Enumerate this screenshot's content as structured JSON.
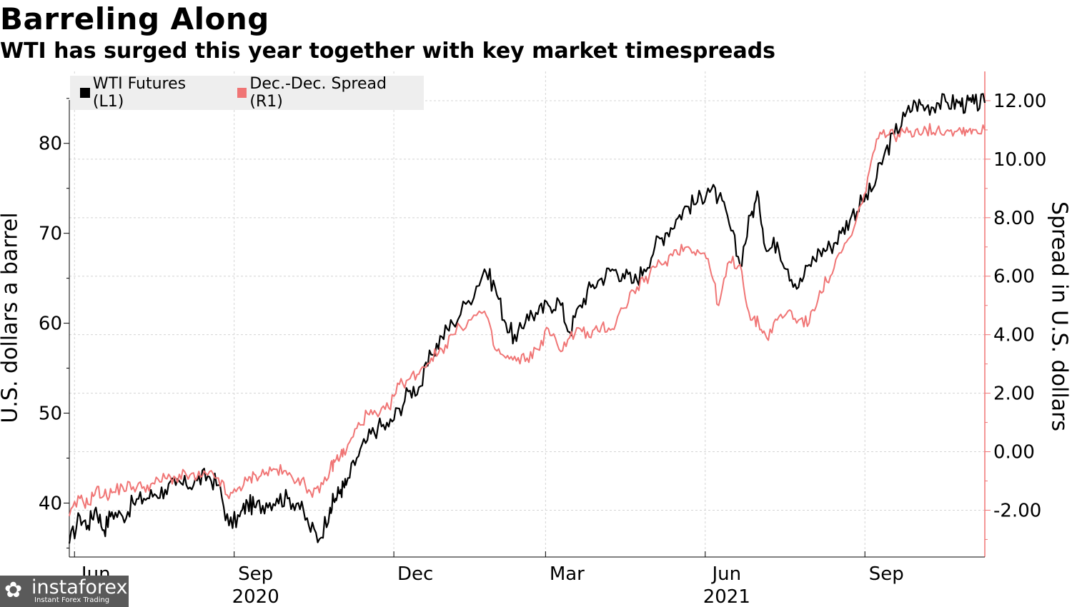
{
  "header": {
    "title": "Barreling Along",
    "subtitle": "WTI has surged this year together with key market timespreads"
  },
  "legend": {
    "items": [
      {
        "label": "WTI Futures (L1)",
        "color": "#000000"
      },
      {
        "label": "Dec.-Dec. Spread (R1)",
        "color": "#f07575"
      }
    ]
  },
  "axes": {
    "left_label": "U.S. dollars a barrel",
    "right_label": "Spread in U.S. dollars"
  },
  "chart_data": {
    "type": "line",
    "title": "Barreling Along",
    "subtitle": "WTI has surged this year together with key market timespreads",
    "x_range": [
      0,
      17.2
    ],
    "x_ticks": [
      {
        "label": "Jun",
        "x": 0.5
      },
      {
        "label": "Sep",
        "x": 3.5
      },
      {
        "label": "Dec",
        "x": 6.5
      },
      {
        "label": "Mar",
        "x": 9.35
      },
      {
        "label": "Jun",
        "x": 12.35
      },
      {
        "label": "Sep",
        "x": 15.35
      }
    ],
    "year_labels": [
      {
        "label": "2020",
        "x": 3.5
      },
      {
        "label": "2021",
        "x": 12.35
      }
    ],
    "y_left": {
      "label": "U.S. dollars a barrel",
      "range": [
        34,
        88
      ],
      "ticks": [
        40,
        50,
        60,
        70,
        80
      ]
    },
    "y_right": {
      "label": "Spread in U.S. dollars",
      "range": [
        -3.6,
        13.0
      ],
      "ticks": [
        "-2.00",
        "0.00",
        "2.00",
        "4.00",
        "6.00",
        "8.00",
        "10.00",
        "12.00"
      ]
    },
    "series": [
      {
        "name": "WTI Futures (L1)",
        "axis": "left",
        "color": "#000000",
        "x": [
          0,
          0.2,
          0.35,
          0.5,
          0.65,
          0.8,
          1.0,
          1.2,
          1.4,
          1.6,
          1.8,
          2.0,
          2.2,
          2.4,
          2.6,
          2.8,
          3.0,
          3.2,
          3.35,
          3.5,
          3.7,
          3.9,
          4.1,
          4.3,
          4.5,
          4.7,
          4.9,
          5.0,
          5.1,
          5.2,
          5.4,
          5.6,
          5.8,
          6.0,
          6.2,
          6.4,
          6.6,
          6.8,
          7.0,
          7.2,
          7.5,
          7.8,
          8.0,
          8.2,
          8.4,
          8.6,
          8.8,
          9.0,
          9.2,
          9.4,
          9.6,
          9.8,
          10.0,
          10.2,
          10.4,
          10.6,
          10.8,
          11.0,
          11.2,
          11.4,
          11.6,
          11.8,
          12.0,
          12.2,
          12.4,
          12.6,
          12.8,
          12.95,
          13.1,
          13.3,
          13.5,
          13.7,
          13.9,
          14.1,
          14.3,
          14.5,
          14.7,
          14.9,
          15.1,
          15.3,
          15.5,
          15.7,
          15.9,
          16.1,
          16.3,
          16.5,
          16.7,
          16.85,
          17.0,
          17.2
        ],
        "values": [
          35.5,
          38.5,
          37.5,
          39.5,
          37.0,
          39.0,
          38.5,
          40.0,
          40.5,
          41.0,
          41.5,
          42.0,
          42.0,
          42.5,
          43.0,
          42.0,
          37.5,
          38.5,
          40.0,
          39.5,
          40.0,
          40.5,
          40.5,
          40.0,
          37.5,
          36.0,
          39.5,
          40.5,
          41.5,
          42.0,
          45.0,
          47.0,
          48.5,
          48.5,
          50.5,
          52.5,
          53.0,
          56.5,
          58.5,
          60.0,
          62.5,
          66.0,
          64.0,
          60.0,
          58.0,
          61.0,
          61.0,
          62.0,
          62.5,
          59.0,
          62.0,
          64.0,
          65.0,
          66.0,
          65.5,
          64.5,
          66.0,
          68.5,
          70.0,
          71.5,
          73.0,
          73.5,
          75.0,
          74.0,
          71.0,
          66.5,
          72.0,
          74.0,
          68.0,
          69.0,
          66.0,
          64.0,
          66.5,
          68.0,
          68.5,
          70.0,
          72.0,
          73.5,
          75.0,
          78.5,
          81.0,
          83.0,
          84.5,
          84.0,
          84.5,
          84.5,
          84.5,
          84.3,
          84.4,
          84.5
        ]
      },
      {
        "name": "Dec.-Dec. Spread (R1)",
        "axis": "right",
        "color": "#f07575",
        "x": [
          0,
          0.2,
          0.35,
          0.5,
          0.65,
          0.8,
          1.0,
          1.2,
          1.4,
          1.6,
          1.8,
          2.0,
          2.2,
          2.4,
          2.6,
          2.8,
          3.0,
          3.2,
          3.35,
          3.5,
          3.7,
          3.9,
          4.1,
          4.3,
          4.5,
          4.7,
          4.9,
          5.0,
          5.1,
          5.2,
          5.4,
          5.6,
          5.8,
          6.0,
          6.2,
          6.4,
          6.6,
          6.8,
          7.0,
          7.2,
          7.5,
          7.8,
          8.0,
          8.2,
          8.4,
          8.6,
          8.8,
          9.0,
          9.2,
          9.4,
          9.6,
          9.8,
          10.0,
          10.2,
          10.4,
          10.6,
          10.8,
          11.0,
          11.2,
          11.4,
          11.6,
          11.8,
          12.0,
          12.2,
          12.4,
          12.6,
          12.8,
          12.95,
          13.1,
          13.3,
          13.5,
          13.7,
          13.9,
          14.1,
          14.3,
          14.5,
          14.7,
          14.9,
          15.1,
          15.3,
          15.5,
          15.7,
          15.9,
          16.1,
          16.3,
          16.5,
          16.7,
          16.85,
          17.0,
          17.2
        ],
        "values": [
          -2.2,
          -1.6,
          -1.8,
          -1.3,
          -1.5,
          -1.4,
          -1.2,
          -1.2,
          -1.2,
          -1.1,
          -0.9,
          -0.9,
          -0.8,
          -0.9,
          -0.8,
          -0.9,
          -1.6,
          -1.2,
          -1.0,
          -0.8,
          -0.7,
          -0.6,
          -0.8,
          -0.9,
          -1.3,
          -1.4,
          -0.6,
          -0.3,
          -0.1,
          0.0,
          0.8,
          1.3,
          1.2,
          1.5,
          2.3,
          2.5,
          2.8,
          3.2,
          3.5,
          4.0,
          4.5,
          4.8,
          3.5,
          3.2,
          3.1,
          3.2,
          3.5,
          4.2,
          3.5,
          3.9,
          4.2,
          3.9,
          4.3,
          4.2,
          4.9,
          5.5,
          5.8,
          6.3,
          6.5,
          6.9,
          7.0,
          6.9,
          6.6,
          5.0,
          6.5,
          6.4,
          4.5,
          4.4,
          3.9,
          4.5,
          4.8,
          4.5,
          4.4,
          5.5,
          6.0,
          6.8,
          7.4,
          8.5,
          10.2,
          11.0,
          10.8,
          10.9,
          11.0,
          11.0,
          11.0,
          11.0,
          11.0,
          11.0,
          11.0,
          11.0
        ]
      }
    ]
  },
  "watermark": {
    "name": "instaforex",
    "tagline": "Instant Forex Trading"
  }
}
